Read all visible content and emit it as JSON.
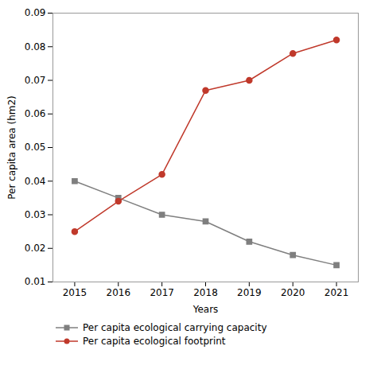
{
  "chart_data": {
    "type": "line",
    "x": [
      2015,
      2016,
      2017,
      2018,
      2019,
      2020,
      2021
    ],
    "series": [
      {
        "name": "Per capita ecological carrying capacity",
        "color": "#7f7f7f",
        "marker": "square",
        "values": [
          0.04,
          0.035,
          0.03,
          0.028,
          0.022,
          0.018,
          0.015
        ]
      },
      {
        "name": "Per capita ecological footprint",
        "color": "#c0392b",
        "marker": "circle",
        "values": [
          0.025,
          0.034,
          0.042,
          0.067,
          0.07,
          0.078,
          0.082
        ]
      }
    ],
    "x_label": "Years",
    "y_label": "Per capita area (hm2)",
    "xlim": [
      2014.5,
      2021.5
    ],
    "xticks": [
      2015,
      2016,
      2017,
      2018,
      2019,
      2020,
      2021
    ],
    "ylim": [
      0.01,
      0.09
    ],
    "yticks": [
      0.01,
      0.02,
      0.03,
      0.04,
      0.05,
      0.06,
      0.07,
      0.08,
      0.09
    ],
    "grid": false,
    "legend": "bottom"
  }
}
